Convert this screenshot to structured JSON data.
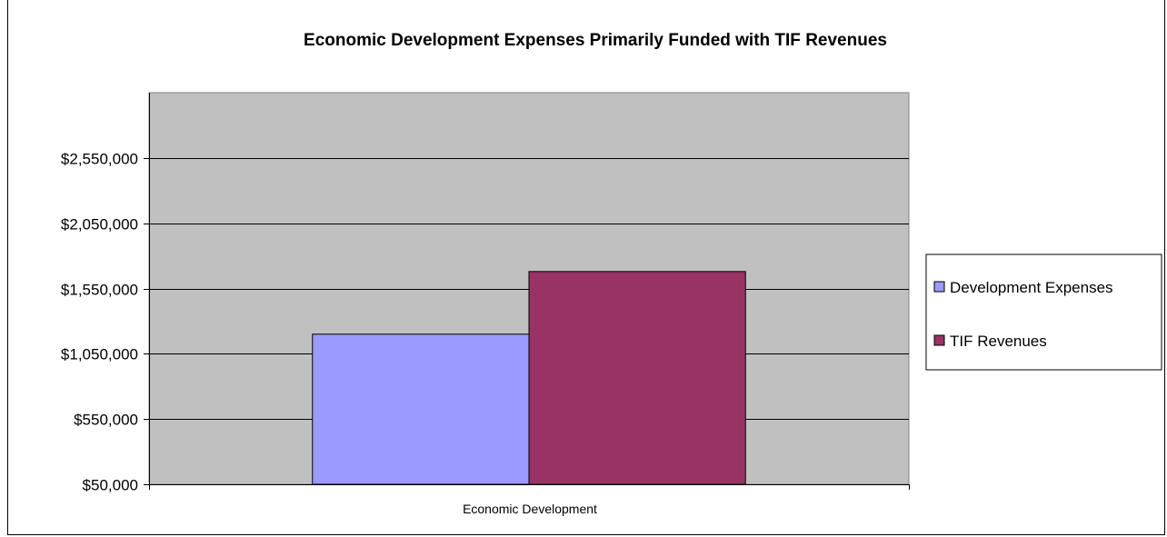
{
  "chart_data": {
    "type": "bar",
    "title": "Economic Development Expenses Primarily Funded with TIF Revenues",
    "categories": [
      "Economic Development"
    ],
    "series": [
      {
        "name": "Development Expenses",
        "values": [
          1200000
        ],
        "color": "#9999FF"
      },
      {
        "name": "TIF Revenues",
        "values": [
          1680000
        ],
        "color": "#993366"
      }
    ],
    "yticks": [
      "$50,000",
      "$550,000",
      "$1,050,000",
      "$1,550,000",
      "$2,050,000",
      "$2,550,000"
    ],
    "ytick_values": [
      50000,
      550000,
      1050000,
      1550000,
      2050000,
      2550000
    ],
    "ylim": [
      50000,
      3050000
    ],
    "grid": true,
    "plot_background": "#C0C0C0",
    "legend_position": "right"
  }
}
